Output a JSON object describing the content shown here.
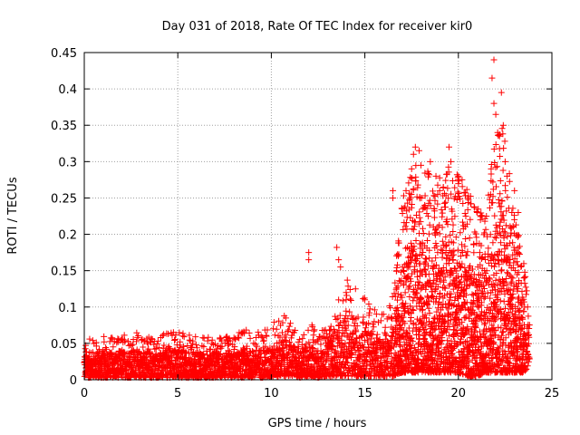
{
  "chart_data": {
    "type": "scatter",
    "title": "Day 031 of 2018, Rate Of TEC Index for receiver kir0",
    "xlabel": "GPS time / hours",
    "ylabel": "ROTI / TECUs",
    "xlim": [
      0,
      25
    ],
    "ylim": [
      0,
      0.45
    ],
    "xticks": [
      0,
      5,
      10,
      15,
      20,
      25
    ],
    "xtick_labels": [
      "0",
      "5",
      "10",
      "15",
      "20",
      "25"
    ],
    "yticks": [
      0,
      0.05,
      0.1,
      0.15,
      0.2,
      0.25,
      0.3,
      0.35,
      0.4,
      0.45
    ],
    "ytick_labels": [
      "0",
      "0.05",
      "0.1",
      "0.15",
      "0.2",
      "0.25",
      "0.3",
      "0.35",
      "0.4",
      "0.45"
    ],
    "grid": true,
    "marker": "+",
    "color": "#ff0000",
    "series": [
      {
        "name": "ROTI",
        "x_range": [
          0,
          23.8
        ],
        "envelope": [
          [
            0.0,
            0.003,
            0.055
          ],
          [
            1.0,
            0.003,
            0.06
          ],
          [
            2.0,
            0.003,
            0.065
          ],
          [
            3.0,
            0.003,
            0.065
          ],
          [
            4.0,
            0.003,
            0.06
          ],
          [
            5.0,
            0.003,
            0.07
          ],
          [
            6.0,
            0.003,
            0.06
          ],
          [
            7.0,
            0.003,
            0.06
          ],
          [
            8.0,
            0.003,
            0.06
          ],
          [
            8.5,
            0.003,
            0.07
          ],
          [
            9.0,
            0.003,
            0.065
          ],
          [
            9.5,
            0.003,
            0.07
          ],
          [
            10.0,
            0.003,
            0.075
          ],
          [
            10.5,
            0.005,
            0.09
          ],
          [
            11.0,
            0.005,
            0.085
          ],
          [
            11.5,
            0.003,
            0.06
          ],
          [
            12.0,
            0.005,
            0.085
          ],
          [
            12.5,
            0.003,
            0.06
          ],
          [
            13.0,
            0.005,
            0.08
          ],
          [
            13.5,
            0.005,
            0.12
          ],
          [
            14.0,
            0.005,
            0.15
          ],
          [
            14.5,
            0.005,
            0.09
          ],
          [
            15.0,
            0.005,
            0.12
          ],
          [
            15.5,
            0.005,
            0.1
          ],
          [
            16.0,
            0.005,
            0.09
          ],
          [
            16.5,
            0.005,
            0.12
          ],
          [
            17.0,
            0.01,
            0.25
          ],
          [
            17.5,
            0.01,
            0.3
          ],
          [
            18.0,
            0.01,
            0.3
          ],
          [
            18.5,
            0.01,
            0.29
          ],
          [
            19.0,
            0.01,
            0.28
          ],
          [
            19.5,
            0.01,
            0.3
          ],
          [
            20.0,
            0.01,
            0.28
          ],
          [
            20.5,
            0.005,
            0.26
          ],
          [
            21.0,
            0.005,
            0.24
          ],
          [
            21.5,
            0.01,
            0.23
          ],
          [
            22.0,
            0.01,
            0.36
          ],
          [
            22.5,
            0.01,
            0.35
          ],
          [
            23.0,
            0.01,
            0.23
          ],
          [
            23.5,
            0.01,
            0.16
          ],
          [
            23.8,
            0.02,
            0.1
          ]
        ],
        "points": [
          [
            12.0,
            0.175
          ],
          [
            12.0,
            0.165
          ],
          [
            13.5,
            0.182
          ],
          [
            13.6,
            0.165
          ],
          [
            13.7,
            0.155
          ],
          [
            14.0,
            0.12
          ],
          [
            14.0,
            0.11
          ],
          [
            14.5,
            0.125
          ],
          [
            15.0,
            0.11
          ],
          [
            15.5,
            0.08
          ],
          [
            16.0,
            0.09
          ],
          [
            16.5,
            0.26
          ],
          [
            16.5,
            0.25
          ],
          [
            17.0,
            0.235
          ],
          [
            17.2,
            0.26
          ],
          [
            17.5,
            0.29
          ],
          [
            17.6,
            0.31
          ],
          [
            17.7,
            0.32
          ],
          [
            17.9,
            0.315
          ],
          [
            18.0,
            0.295
          ],
          [
            18.2,
            0.24
          ],
          [
            18.5,
            0.3
          ],
          [
            18.8,
            0.28
          ],
          [
            19.0,
            0.26
          ],
          [
            19.5,
            0.32
          ],
          [
            19.6,
            0.3
          ],
          [
            20.0,
            0.28
          ],
          [
            20.2,
            0.275
          ],
          [
            20.5,
            0.25
          ],
          [
            21.0,
            0.23
          ],
          [
            21.5,
            0.225
          ],
          [
            21.8,
            0.415
          ],
          [
            21.9,
            0.44
          ],
          [
            21.9,
            0.38
          ],
          [
            22.0,
            0.365
          ],
          [
            22.1,
            0.34
          ],
          [
            22.2,
            0.335
          ],
          [
            22.3,
            0.395
          ],
          [
            22.4,
            0.35
          ],
          [
            22.5,
            0.3
          ],
          [
            22.6,
            0.28
          ],
          [
            23.0,
            0.26
          ],
          [
            23.2,
            0.23
          ],
          [
            23.5,
            0.14
          ],
          [
            23.7,
            0.1
          ]
        ]
      }
    ]
  }
}
